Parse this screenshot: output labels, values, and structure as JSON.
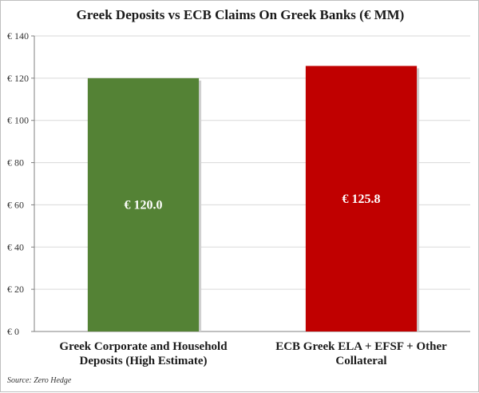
{
  "chart_data": {
    "type": "bar",
    "title": "Greek Deposits vs ECB Claims  On Greek Banks (€ MM)",
    "categories": [
      [
        "Greek Corporate and Household",
        "Deposits (High Estimate)"
      ],
      [
        "ECB Greek ELA + EFSF + Other",
        "Collateral"
      ]
    ],
    "values": [
      120.0,
      125.8
    ],
    "data_labels": [
      "€ 120.0",
      "€ 125.8"
    ],
    "bar_colors": [
      "#548235",
      "#c00000"
    ],
    "ylim": [
      0,
      140
    ],
    "yticks": [
      0,
      20,
      40,
      60,
      80,
      100,
      120,
      140
    ],
    "ytick_labels": [
      "€ 0",
      "€ 20",
      "€ 40",
      "€ 60",
      "€ 80",
      "€ 100",
      "€ 120",
      "€ 140"
    ],
    "grid": true,
    "xlabel": "",
    "ylabel": ""
  },
  "source": "Source: Zero Hedge"
}
